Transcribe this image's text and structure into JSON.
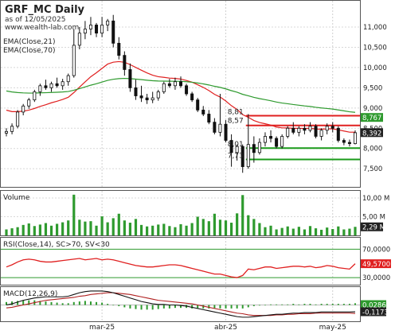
{
  "chart_data": {
    "type": "candlestick",
    "symbol": "GRF_MC Daily",
    "subtitle": "as of 12/05/2025",
    "source": "www.wealth-lab.com",
    "indicators": [
      "EMA(Close,21)",
      "EMA(Close,70)"
    ],
    "x_labels": [
      "mar-25",
      "abr-25",
      "may-25"
    ],
    "price_axis": {
      "ticks": [
        "11,000",
        "10,500",
        "10,000",
        "9,500",
        "9,000",
        "8,500",
        "8,000",
        "7,500"
      ],
      "ylim": [
        7.15,
        11.55
      ]
    },
    "price_tags": [
      {
        "label": "8,767",
        "value": 8.767,
        "color": "#2e9a2e"
      },
      {
        "label": "8,392",
        "value": 8.392,
        "color": "#222222"
      }
    ],
    "levels": [
      {
        "label": "8,81",
        "value": 8.81,
        "color": "#e02020"
      },
      {
        "label": "8,57",
        "value": 8.57,
        "color": "#e02020"
      },
      {
        "label": "8,01",
        "value": 8.01,
        "color": "#1a9a1a"
      },
      {
        "label": "7,73",
        "value": 7.73,
        "color": "#1a9a1a"
      }
    ],
    "candles": [
      [
        8.38,
        8.5,
        8.3,
        8.42
      ],
      [
        8.42,
        8.62,
        8.35,
        8.55
      ],
      [
        8.55,
        8.95,
        8.5,
        8.9
      ],
      [
        8.9,
        9.1,
        8.82,
        9.05
      ],
      [
        9.05,
        9.25,
        8.98,
        9.2
      ],
      [
        9.2,
        9.45,
        9.15,
        9.4
      ],
      [
        9.4,
        9.6,
        9.3,
        9.55
      ],
      [
        9.55,
        9.7,
        9.45,
        9.5
      ],
      [
        9.5,
        9.65,
        9.4,
        9.6
      ],
      [
        9.6,
        9.75,
        9.5,
        9.55
      ],
      [
        9.55,
        9.72,
        9.45,
        9.65
      ],
      [
        9.65,
        9.85,
        9.55,
        9.8
      ],
      [
        9.8,
        10.95,
        9.75,
        10.55
      ],
      [
        10.55,
        11.0,
        10.45,
        10.85
      ],
      [
        10.85,
        11.15,
        10.7,
        10.95
      ],
      [
        10.95,
        11.25,
        10.8,
        11.05
      ],
      [
        11.05,
        11.1,
        10.75,
        10.85
      ],
      [
        10.85,
        11.25,
        10.75,
        11.05
      ],
      [
        11.05,
        11.2,
        10.9,
        11.15
      ],
      [
        11.15,
        11.3,
        10.5,
        10.6
      ],
      [
        10.6,
        10.75,
        10.2,
        10.3
      ],
      [
        10.3,
        10.4,
        9.8,
        9.95
      ],
      [
        9.95,
        10.1,
        9.4,
        9.5
      ],
      [
        9.5,
        9.7,
        9.2,
        9.3
      ],
      [
        9.3,
        9.55,
        9.15,
        9.25
      ],
      [
        9.25,
        9.35,
        9.1,
        9.2
      ],
      [
        9.2,
        9.4,
        9.12,
        9.25
      ],
      [
        9.25,
        9.45,
        9.18,
        9.4
      ],
      [
        9.4,
        9.65,
        9.35,
        9.6
      ],
      [
        9.6,
        9.72,
        9.5,
        9.55
      ],
      [
        9.55,
        9.75,
        9.45,
        9.65
      ],
      [
        9.65,
        9.78,
        9.5,
        9.55
      ],
      [
        9.55,
        9.6,
        9.3,
        9.35
      ],
      [
        9.35,
        9.4,
        9.15,
        9.2
      ],
      [
        9.2,
        9.25,
        8.9,
        8.95
      ],
      [
        8.95,
        9.05,
        8.8,
        8.85
      ],
      [
        8.85,
        8.95,
        8.6,
        8.65
      ],
      [
        8.65,
        8.75,
        8.35,
        8.4
      ],
      [
        8.4,
        9.35,
        8.3,
        8.6
      ],
      [
        8.6,
        8.7,
        8.15,
        8.2
      ],
      [
        8.2,
        8.35,
        7.55,
        7.9
      ],
      [
        7.9,
        8.1,
        7.7,
        8.05
      ],
      [
        8.05,
        8.1,
        7.4,
        7.55
      ],
      [
        7.55,
        8.85,
        7.5,
        8.1
      ],
      [
        8.1,
        8.3,
        7.65,
        7.9
      ],
      [
        7.9,
        8.25,
        7.85,
        8.15
      ],
      [
        8.15,
        8.4,
        8.05,
        8.3
      ],
      [
        8.3,
        8.45,
        8.15,
        8.25
      ],
      [
        8.25,
        8.3,
        8.0,
        8.05
      ],
      [
        8.05,
        8.35,
        8.0,
        8.3
      ],
      [
        8.3,
        8.55,
        8.25,
        8.5
      ],
      [
        8.5,
        8.65,
        8.35,
        8.4
      ],
      [
        8.4,
        8.55,
        8.3,
        8.5
      ],
      [
        8.5,
        8.6,
        8.35,
        8.45
      ],
      [
        8.45,
        8.65,
        8.4,
        8.55
      ],
      [
        8.55,
        8.6,
        8.25,
        8.3
      ],
      [
        8.3,
        8.5,
        8.2,
        8.45
      ],
      [
        8.45,
        8.62,
        8.35,
        8.55
      ],
      [
        8.55,
        8.65,
        8.4,
        8.5
      ],
      [
        8.5,
        8.55,
        8.15,
        8.2
      ],
      [
        8.2,
        8.25,
        8.08,
        8.15
      ],
      [
        8.15,
        8.22,
        8.05,
        8.12
      ],
      [
        8.12,
        8.45,
        8.1,
        8.39
      ]
    ],
    "volume": {
      "label": "Volume",
      "ticks": [
        "10,00 M",
        "5,00 M"
      ],
      "ylim": [
        0,
        11.5
      ],
      "last_label": "2,29 M",
      "values": [
        1.6,
        1.9,
        2.2,
        2.8,
        3.2,
        2.5,
        2.9,
        3.3,
        2.6,
        3.1,
        3.5,
        4.0,
        10.9,
        4.2,
        3.7,
        3.8,
        2.6,
        5.1,
        3.5,
        4.6,
        5.8,
        4.0,
        3.4,
        4.4,
        2.8,
        2.4,
        2.6,
        2.9,
        3.1,
        2.5,
        2.2,
        3.0,
        2.6,
        3.3,
        5.0,
        4.4,
        3.8,
        5.8,
        4.2,
        4.0,
        3.4,
        5.9,
        10.8,
        5.4,
        4.4,
        3.3,
        2.2,
        2.6,
        1.6,
        2.0,
        2.4,
        1.8,
        2.3,
        1.6,
        2.5,
        1.9,
        1.5,
        2.1,
        1.7,
        2.4,
        1.6,
        1.8,
        2.29
      ]
    },
    "rsi": {
      "label": "RSI(Close,14), SC>70, SV<30",
      "ticks": [
        "70,0000",
        "30,0000"
      ],
      "ylim": [
        20,
        85
      ],
      "last_label": "49,5700",
      "values": [
        45,
        48,
        52,
        55,
        56,
        55,
        53,
        52,
        52,
        53,
        54,
        55,
        56,
        57,
        55,
        56,
        57,
        55,
        56,
        55,
        53,
        51,
        49,
        47,
        46,
        45,
        45,
        46,
        47,
        48,
        48,
        47,
        45,
        43,
        41,
        39,
        37,
        35,
        35,
        33,
        31,
        30,
        33,
        42,
        41,
        43,
        45,
        45,
        43,
        44,
        45,
        46,
        46,
        45,
        46,
        44,
        45,
        47,
        46,
        44,
        43,
        42,
        49.57
      ]
    },
    "macd": {
      "label": "MACD(12,26,9)",
      "ylim": [
        -0.28,
        0.28
      ],
      "tags": [
        {
          "label": "0,0286",
          "value": 0.0286,
          "color": "#2e9a2e"
        },
        {
          "label": "-0,1173",
          "value": -0.1173,
          "color": "#222222"
        }
      ],
      "macd_line": [
        0.0,
        0.02,
        0.05,
        0.08,
        0.1,
        0.12,
        0.13,
        0.14,
        0.14,
        0.14,
        0.14,
        0.15,
        0.18,
        0.21,
        0.23,
        0.24,
        0.24,
        0.24,
        0.23,
        0.21,
        0.18,
        0.15,
        0.12,
        0.09,
        0.06,
        0.04,
        0.02,
        0.01,
        0.01,
        0.0,
        0.0,
        -0.01,
        -0.02,
        -0.04,
        -0.06,
        -0.08,
        -0.1,
        -0.12,
        -0.14,
        -0.16,
        -0.18,
        -0.2,
        -0.21,
        -0.21,
        -0.2,
        -0.19,
        -0.18,
        -0.17,
        -0.16,
        -0.16,
        -0.15,
        -0.14,
        -0.14,
        -0.13,
        -0.13,
        -0.13,
        -0.12,
        -0.12,
        -0.12,
        -0.12,
        -0.12,
        -0.12,
        -0.117
      ],
      "signal_line": [
        -0.05,
        -0.04,
        -0.02,
        0.0,
        0.02,
        0.04,
        0.06,
        0.08,
        0.09,
        0.1,
        0.11,
        0.12,
        0.13,
        0.15,
        0.16,
        0.18,
        0.19,
        0.2,
        0.21,
        0.21,
        0.2,
        0.19,
        0.18,
        0.16,
        0.14,
        0.12,
        0.1,
        0.08,
        0.07,
        0.06,
        0.05,
        0.04,
        0.03,
        0.02,
        0.0,
        -0.02,
        -0.04,
        -0.06,
        -0.08,
        -0.1,
        -0.12,
        -0.14,
        -0.15,
        -0.17,
        -0.18,
        -0.18,
        -0.18,
        -0.18,
        -0.17,
        -0.17,
        -0.16,
        -0.16,
        -0.15,
        -0.15,
        -0.15,
        -0.14,
        -0.14,
        -0.14,
        -0.14,
        -0.14,
        -0.14,
        -0.14,
        -0.146
      ]
    }
  }
}
